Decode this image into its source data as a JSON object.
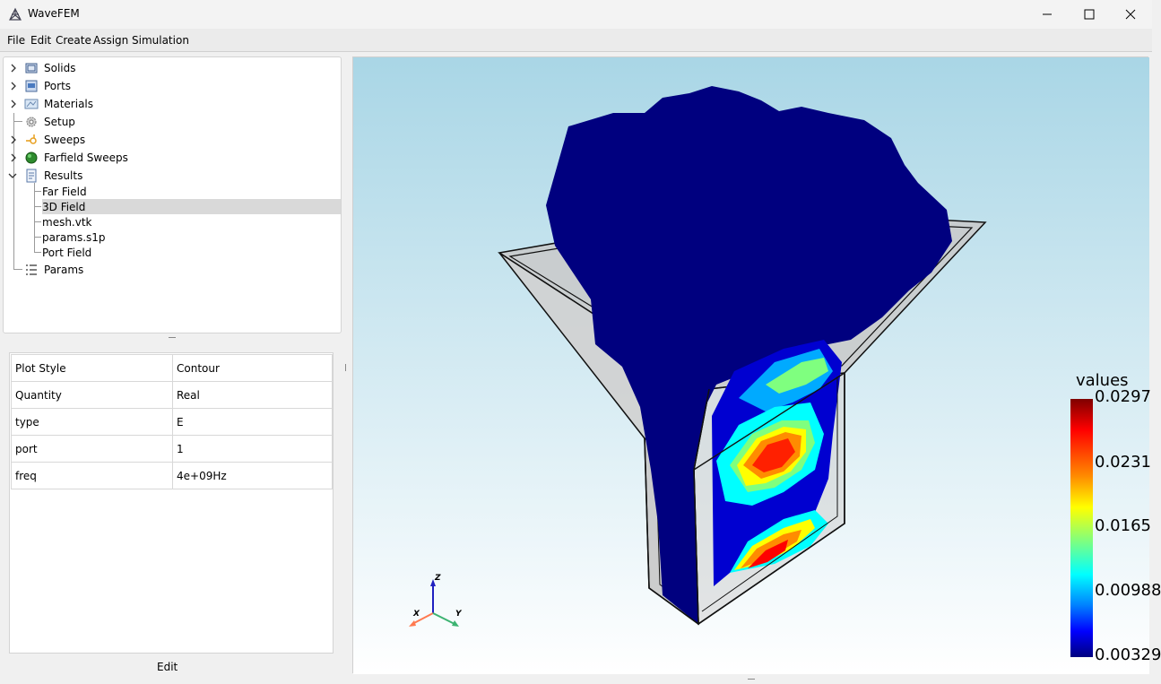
{
  "window": {
    "title": "WaveFEM"
  },
  "menu": {
    "items": [
      "File",
      "Edit",
      "Create",
      "Assign",
      "Simulation"
    ]
  },
  "tree": {
    "items": [
      {
        "label": "Solids",
        "icon": "solids-icon",
        "expandable": true
      },
      {
        "label": "Ports",
        "icon": "ports-icon",
        "expandable": true
      },
      {
        "label": "Materials",
        "icon": "materials-icon",
        "expandable": true
      },
      {
        "label": "Setup",
        "icon": "gear-icon",
        "expandable": false
      },
      {
        "label": "Sweeps",
        "icon": "sweeps-icon",
        "expandable": true
      },
      {
        "label": "Farfield Sweeps",
        "icon": "globe-icon",
        "expandable": true
      },
      {
        "label": "Results",
        "icon": "results-icon",
        "expandable": true,
        "expanded": true
      },
      {
        "label": "Params",
        "icon": "list-icon",
        "expandable": false
      }
    ],
    "results_children": [
      "Far Field",
      "3D Field",
      "mesh.vtk",
      "params.s1p",
      "Port Field"
    ],
    "selected": "3D Field"
  },
  "properties": {
    "rows": [
      {
        "key": "Plot Style",
        "value": "Contour"
      },
      {
        "key": "Quantity",
        "value": "Real"
      },
      {
        "key": "type",
        "value": "E"
      },
      {
        "key": "port",
        "value": "1"
      },
      {
        "key": "freq",
        "value": "4e+09Hz"
      }
    ],
    "edit_label": "Edit"
  },
  "view3d": {
    "legend_title": "values",
    "legend_ticks": [
      "0.0297",
      "0.0231",
      "0.0165",
      "0.00988",
      "0.00329"
    ],
    "axes": {
      "x": "X",
      "y": "Y",
      "z": "Z"
    },
    "colors": {
      "background_top": "#a9d6e6",
      "background_bottom": "#ffffff",
      "field_low": "#00007f",
      "field_high": "#7f0000"
    }
  }
}
